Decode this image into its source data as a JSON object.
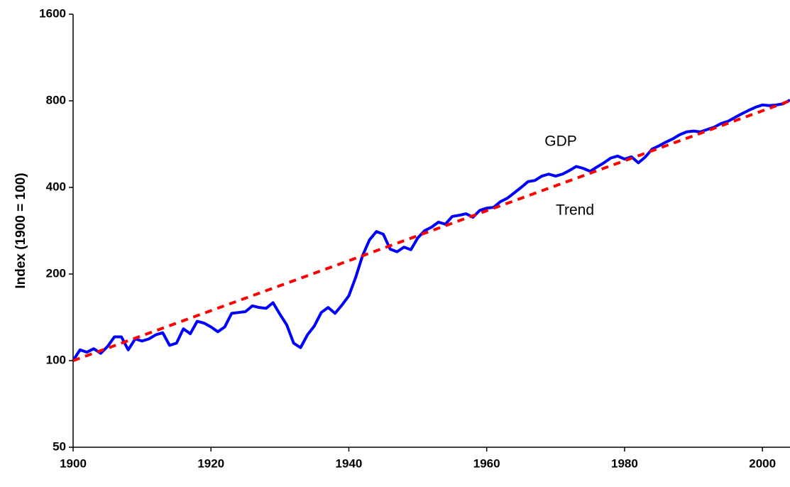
{
  "chart_data": {
    "type": "line",
    "y_label": "Index (1900 = 100)",
    "ylog": true,
    "xlim": [
      1900,
      2004
    ],
    "ylim": [
      50,
      1600
    ],
    "xticks": [
      1900,
      1920,
      1940,
      1960,
      1980,
      2000
    ],
    "yticks": [
      50,
      100,
      200,
      400,
      800,
      1600
    ],
    "x": [
      1900,
      1901,
      1902,
      1903,
      1904,
      1905,
      1906,
      1907,
      1908,
      1909,
      1910,
      1911,
      1912,
      1913,
      1914,
      1915,
      1916,
      1917,
      1918,
      1919,
      1920,
      1921,
      1922,
      1923,
      1924,
      1925,
      1926,
      1927,
      1928,
      1929,
      1930,
      1931,
      1932,
      1933,
      1934,
      1935,
      1936,
      1937,
      1938,
      1939,
      1940,
      1941,
      1942,
      1943,
      1944,
      1945,
      1946,
      1947,
      1948,
      1949,
      1950,
      1951,
      1952,
      1953,
      1954,
      1955,
      1956,
      1957,
      1958,
      1959,
      1960,
      1961,
      1962,
      1963,
      1964,
      1965,
      1966,
      1967,
      1968,
      1969,
      1970,
      1971,
      1972,
      1973,
      1974,
      1975,
      1976,
      1977,
      1978,
      1979,
      1980,
      1981,
      1982,
      1983,
      1984,
      1985,
      1986,
      1987,
      1988,
      1989,
      1990,
      1991,
      1992,
      1993,
      1994,
      1995,
      1996,
      1997,
      1998,
      1999,
      2000,
      2001,
      2002,
      2003,
      2004
    ],
    "series": [
      {
        "name": "GDP",
        "color": "#0000ff",
        "dashed": false,
        "values": [
          100,
          109,
          107,
          110,
          106,
          112,
          121,
          121,
          109,
          119,
          117,
          119,
          123,
          125,
          113,
          115,
          129,
          124,
          137,
          135,
          131,
          126,
          131,
          146,
          147,
          148,
          155,
          153,
          152,
          159,
          145,
          133,
          115,
          111,
          123,
          132,
          147,
          153,
          146,
          156,
          168,
          195,
          232,
          263,
          281,
          275,
          244,
          239,
          248,
          243,
          267,
          283,
          291,
          303,
          298,
          317,
          320,
          324,
          315,
          333,
          339,
          341,
          357,
          367,
          383,
          400,
          419,
          423,
          438,
          445,
          438,
          445,
          458,
          473,
          466,
          455,
          471,
          487,
          506,
          514,
          502,
          511,
          487,
          510,
          544,
          558,
          575,
          590,
          610,
          624,
          628,
          624,
          636,
          648,
          667,
          679,
          700,
          721,
          741,
          760,
          774,
          770,
          774,
          781,
          805
        ]
      },
      {
        "name": "Trend",
        "color": "#ff0000",
        "dashed": true,
        "x": [
          1900,
          2004
        ],
        "values": [
          100,
          800
        ]
      }
    ],
    "annotations": [
      {
        "text": "GDP"
      },
      {
        "text": "Trend"
      }
    ]
  }
}
